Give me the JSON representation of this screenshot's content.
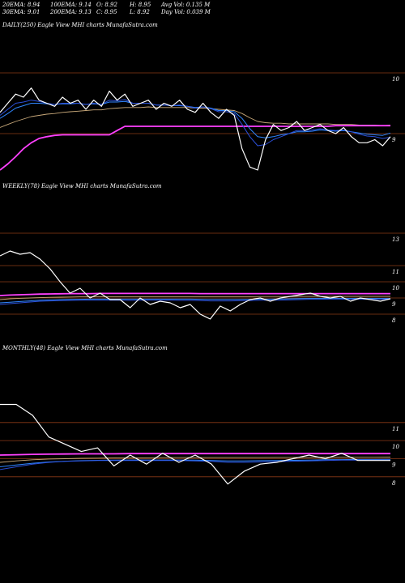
{
  "header": {
    "ema20": "20EMA: 8.94",
    "ema100": "100EMA: 9.14",
    "open": "O: 8.92",
    "high": "H: 8.95",
    "avg_vol": "Avg Vol: 0.135 M",
    "ema30": "30EMA: 9.01",
    "ema200": "200EMA: 9.13",
    "close": "C: 8.95",
    "low": "L: 8.92",
    "day_vol": "Day Vol: 0.039 M"
  },
  "colors": {
    "background": "#000000",
    "price_line": "#ffffff",
    "ema_short": "#2b4fd8",
    "ema_mid": "#2f86ff",
    "ema_long": "#c9a97a",
    "magenta": "#ff40ff",
    "grid": "#8b3a17"
  },
  "chart_data": [
    {
      "type": "line",
      "title": "DAILY(250) Eagle  View  MHI charts MunafaSutra.com",
      "yticks": [
        9,
        10
      ],
      "ylim": [
        7.6,
        10.6
      ],
      "x": [
        0,
        5,
        10,
        15,
        20,
        25,
        30,
        35,
        40,
        45,
        50,
        55,
        60,
        65,
        70,
        75,
        80,
        85,
        90,
        95,
        100,
        105,
        110,
        115,
        120,
        125,
        130,
        135,
        140,
        145,
        150,
        155,
        160,
        165,
        170,
        175,
        180,
        185,
        190,
        195,
        200,
        205,
        210,
        215,
        220,
        225,
        230,
        235,
        240,
        245,
        250
      ],
      "series": [
        {
          "key": "price",
          "values": [
            9.35,
            9.5,
            9.65,
            9.6,
            9.75,
            9.55,
            9.5,
            9.45,
            9.6,
            9.5,
            9.55,
            9.4,
            9.55,
            9.45,
            9.7,
            9.55,
            9.65,
            9.45,
            9.5,
            9.55,
            9.4,
            9.5,
            9.45,
            9.55,
            9.4,
            9.35,
            9.5,
            9.35,
            9.25,
            9.4,
            9.3,
            8.75,
            8.45,
            8.4,
            8.9,
            9.15,
            9.05,
            9.1,
            9.2,
            9.05,
            9.1,
            9.15,
            9.05,
            9.0,
            9.1,
            8.95,
            8.85,
            8.85,
            8.9,
            8.8,
            8.95
          ]
        },
        {
          "key": "ema20",
          "values": [
            9.3,
            9.4,
            9.5,
            9.52,
            9.55,
            9.53,
            9.5,
            9.48,
            9.5,
            9.5,
            9.5,
            9.48,
            9.5,
            9.48,
            9.55,
            9.54,
            9.56,
            9.5,
            9.5,
            9.5,
            9.47,
            9.47,
            9.46,
            9.47,
            9.45,
            9.42,
            9.44,
            9.41,
            9.36,
            9.36,
            9.33,
            9.15,
            8.95,
            8.8,
            8.82,
            8.9,
            8.95,
            9.0,
            9.05,
            9.05,
            9.06,
            9.08,
            9.06,
            9.05,
            9.06,
            9.03,
            8.99,
            8.96,
            8.95,
            8.92,
            8.94
          ]
        },
        {
          "key": "ema30",
          "values": [
            9.25,
            9.33,
            9.42,
            9.46,
            9.5,
            9.5,
            9.49,
            9.48,
            9.49,
            9.49,
            9.5,
            9.48,
            9.49,
            9.48,
            9.52,
            9.52,
            9.53,
            9.5,
            9.5,
            9.5,
            9.47,
            9.47,
            9.46,
            9.46,
            9.45,
            9.43,
            9.44,
            9.42,
            9.38,
            9.38,
            9.36,
            9.25,
            9.08,
            8.95,
            8.93,
            8.95,
            8.98,
            9.0,
            9.03,
            9.03,
            9.04,
            9.06,
            9.05,
            9.04,
            9.05,
            9.03,
            9.01,
            8.99,
            8.98,
            8.97,
            9.01
          ]
        },
        {
          "key": "ema100",
          "values": [
            9.1,
            9.15,
            9.2,
            9.24,
            9.28,
            9.3,
            9.32,
            9.33,
            9.35,
            9.36,
            9.37,
            9.38,
            9.39,
            9.39,
            9.41,
            9.42,
            9.43,
            9.43,
            9.43,
            9.44,
            9.43,
            9.43,
            9.43,
            9.43,
            9.43,
            9.42,
            9.42,
            9.41,
            9.4,
            9.39,
            9.38,
            9.33,
            9.26,
            9.2,
            9.18,
            9.17,
            9.17,
            9.16,
            9.16,
            9.16,
            9.16,
            9.16,
            9.16,
            9.15,
            9.15,
            9.15,
            9.14,
            9.14,
            9.14,
            9.13,
            9.14
          ]
        },
        {
          "key": "ema200",
          "values": [
            8.4,
            8.5,
            8.62,
            8.75,
            8.85,
            8.92,
            8.95,
            8.97,
            8.98,
            8.98,
            8.98,
            8.98,
            8.98,
            8.98,
            8.98,
            9.05,
            9.12,
            9.12,
            9.12,
            9.12,
            9.12,
            9.12,
            9.12,
            9.12,
            9.12,
            9.12,
            9.12,
            9.12,
            9.12,
            9.12,
            9.12,
            9.12,
            9.12,
            9.12,
            9.12,
            9.12,
            9.12,
            9.12,
            9.12,
            9.12,
            9.12,
            9.12,
            9.12,
            9.13,
            9.13,
            9.13,
            9.13,
            9.13,
            9.13,
            9.13,
            9.13
          ]
        }
      ]
    },
    {
      "type": "line",
      "title": "WEEKLY(78) Eagle  View  MHI charts MunafaSutra.com",
      "yticks": [
        8,
        9,
        10,
        11,
        13
      ],
      "ylim": [
        7.4,
        13.4
      ],
      "x": [
        0,
        2,
        4,
        6,
        8,
        10,
        12,
        14,
        16,
        18,
        20,
        22,
        24,
        26,
        28,
        30,
        32,
        34,
        36,
        38,
        40,
        42,
        44,
        46,
        48,
        50,
        52,
        54,
        56,
        58,
        60,
        62,
        64,
        66,
        68,
        70,
        72,
        74,
        76,
        78
      ],
      "series": [
        {
          "key": "price",
          "values": [
            11.6,
            11.9,
            11.7,
            11.8,
            11.4,
            10.8,
            10.0,
            9.3,
            9.6,
            9.0,
            9.3,
            8.9,
            8.9,
            8.4,
            9.0,
            8.6,
            8.8,
            8.7,
            8.4,
            8.6,
            8.0,
            7.7,
            8.5,
            8.2,
            8.6,
            8.9,
            9.0,
            8.8,
            9.0,
            9.1,
            9.2,
            9.3,
            9.1,
            9.0,
            9.1,
            8.8,
            9.0,
            8.9,
            8.8,
            8.95
          ]
        },
        {
          "key": "ema20",
          "values": [
            8.6,
            8.65,
            8.7,
            8.75,
            8.8,
            8.82,
            8.84,
            8.85,
            8.86,
            8.86,
            8.86,
            8.86,
            8.86,
            8.85,
            8.86,
            8.86,
            8.86,
            8.86,
            8.85,
            8.85,
            8.84,
            8.82,
            8.82,
            8.82,
            8.83,
            8.84,
            8.86,
            8.86,
            8.87,
            8.88,
            8.9,
            8.92,
            8.92,
            8.93,
            8.93,
            8.92,
            8.92,
            8.92,
            8.92,
            8.93
          ]
        },
        {
          "key": "ema30",
          "values": [
            8.7,
            8.74,
            8.78,
            8.82,
            8.86,
            8.88,
            8.9,
            8.91,
            8.92,
            8.93,
            8.93,
            8.93,
            8.93,
            8.93,
            8.93,
            8.93,
            8.93,
            8.93,
            8.93,
            8.93,
            8.92,
            8.91,
            8.91,
            8.91,
            8.91,
            8.92,
            8.93,
            8.93,
            8.94,
            8.95,
            8.96,
            8.97,
            8.97,
            8.97,
            8.97,
            8.97,
            8.97,
            8.97,
            8.97,
            8.97
          ]
        },
        {
          "key": "ema100",
          "values": [
            8.9,
            8.95,
            8.98,
            9.0,
            9.02,
            9.04,
            9.05,
            9.06,
            9.07,
            9.07,
            9.08,
            9.08,
            9.08,
            9.08,
            9.08,
            9.08,
            9.08,
            9.08,
            9.08,
            9.08,
            9.08,
            9.08,
            9.08,
            9.08,
            9.08,
            9.08,
            9.09,
            9.09,
            9.09,
            9.09,
            9.1,
            9.1,
            9.1,
            9.1,
            9.1,
            9.1,
            9.1,
            9.1,
            9.1,
            9.1
          ]
        },
        {
          "key": "ema200",
          "values": [
            9.15,
            9.18,
            9.2,
            9.22,
            9.24,
            9.25,
            9.26,
            9.27,
            9.27,
            9.27,
            9.28,
            9.28,
            9.28,
            9.28,
            9.28,
            9.28,
            9.28,
            9.28,
            9.28,
            9.28,
            9.27,
            9.27,
            9.27,
            9.27,
            9.27,
            9.27,
            9.27,
            9.27,
            9.27,
            9.27,
            9.27,
            9.27,
            9.27,
            9.27,
            9.27,
            9.27,
            9.27,
            9.27,
            9.27,
            9.27
          ]
        }
      ]
    },
    {
      "type": "line",
      "title": "MONTHLY(48) Eagle  View  MHI charts MunafaSutra.com",
      "yticks": [
        8,
        9,
        10,
        11
      ],
      "ylim": [
        7.5,
        12.2
      ],
      "x": [
        0,
        2,
        4,
        6,
        8,
        10,
        12,
        14,
        16,
        18,
        20,
        22,
        24,
        26,
        28,
        30,
        32,
        34,
        36,
        38,
        40,
        42,
        44,
        46,
        48
      ],
      "series": [
        {
          "key": "price",
          "values": [
            12.0,
            12.0,
            11.4,
            10.2,
            9.8,
            9.4,
            9.6,
            8.6,
            9.2,
            8.7,
            9.3,
            8.8,
            9.2,
            8.7,
            7.6,
            8.3,
            8.7,
            8.8,
            9.0,
            9.2,
            9.0,
            9.3,
            8.9,
            8.9,
            8.9
          ]
        },
        {
          "key": "ema20",
          "values": [
            8.4,
            8.55,
            8.7,
            8.8,
            8.85,
            8.88,
            8.9,
            8.9,
            8.9,
            8.9,
            8.9,
            8.9,
            8.88,
            8.85,
            8.8,
            8.8,
            8.82,
            8.84,
            8.86,
            8.88,
            8.9,
            8.92,
            8.92,
            8.92,
            8.93
          ]
        },
        {
          "key": "ema30",
          "values": [
            8.55,
            8.65,
            8.75,
            8.82,
            8.86,
            8.89,
            8.91,
            8.92,
            8.93,
            8.93,
            8.93,
            8.93,
            8.92,
            8.9,
            8.88,
            8.88,
            8.89,
            8.9,
            8.91,
            8.92,
            8.94,
            8.95,
            8.96,
            8.96,
            8.97
          ]
        },
        {
          "key": "ema100",
          "values": [
            8.8,
            8.88,
            8.94,
            8.98,
            9.0,
            9.02,
            9.03,
            9.04,
            9.05,
            9.05,
            9.06,
            9.06,
            9.06,
            9.06,
            9.06,
            9.06,
            9.06,
            9.07,
            9.07,
            9.07,
            9.08,
            9.08,
            9.08,
            9.08,
            9.09
          ]
        },
        {
          "key": "ema200",
          "values": [
            9.2,
            9.22,
            9.24,
            9.25,
            9.26,
            9.27,
            9.27,
            9.27,
            9.28,
            9.28,
            9.28,
            9.28,
            9.28,
            9.28,
            9.28,
            9.28,
            9.28,
            9.28,
            9.28,
            9.28,
            9.28,
            9.28,
            9.28,
            9.28,
            9.28
          ]
        }
      ]
    }
  ]
}
